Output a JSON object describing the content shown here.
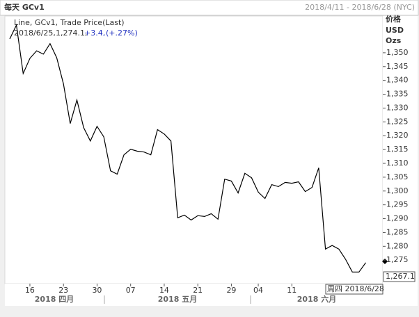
{
  "chart_data": {
    "type": "line",
    "header_left": "每天 GCv1",
    "header_right": "2018/4/11 - 2018/6/28 (NYC)",
    "y_unit_labels": [
      "价格",
      "USD",
      "Ozs"
    ],
    "legend": {
      "title": "Line, GCv1, Trade Price(Last)",
      "date": "2018/6/25,",
      "price": "1,274.1,",
      "change": "+3.4,",
      "change_pct": "(+.27%)"
    },
    "cursor_label": "周四 2018/6/28",
    "price_tag": "1,267.1",
    "month_labels": [
      "2018 四月",
      "2018 五月",
      "2018 六月"
    ],
    "categories": [
      null,
      null,
      null,
      "16",
      null,
      null,
      null,
      null,
      "23",
      null,
      null,
      null,
      null,
      "30",
      null,
      null,
      null,
      null,
      "07",
      null,
      null,
      null,
      null,
      "14",
      null,
      null,
      null,
      null,
      "21",
      null,
      null,
      null,
      null,
      "29",
      null,
      null,
      null,
      "04",
      null,
      null,
      null,
      null,
      "11",
      null,
      null,
      null,
      null,
      null,
      null,
      null,
      null,
      null,
      null,
      null
    ],
    "series": [
      {
        "name": "GCv1",
        "color": "#000000",
        "values": [
          1355.0,
          1360.0,
          1342.5,
          1348.0,
          1350.7,
          1349.5,
          1353.3,
          1348.2,
          1338.7,
          1324.4,
          1332.9,
          1322.9,
          1318.1,
          1323.4,
          1319.6,
          1307.3,
          1306.1,
          1313.1,
          1315.1,
          1314.4,
          1314.1,
          1313.1,
          1322.2,
          1320.6,
          1318.1,
          1290.3,
          1291.3,
          1289.5,
          1291.1,
          1290.8,
          1291.8,
          1289.8,
          1304.3,
          1303.6,
          1299.3,
          1306.4,
          1304.8,
          1299.6,
          1297.3,
          1302.3,
          1301.6,
          1303.1,
          1302.8,
          1303.3,
          1299.8,
          1301.3,
          1308.4,
          1279.0,
          1280.3,
          1279.0,
          1275.3,
          1270.7,
          1270.7,
          1274.1
        ]
      }
    ],
    "ylim": [
      1266.5,
      1363.3
    ],
    "yticks": [
      {
        "value": 1275,
        "label": "1,275"
      },
      {
        "value": 1280,
        "label": "1,280"
      },
      {
        "value": 1285,
        "label": "1,285"
      },
      {
        "value": 1290,
        "label": "1,290"
      },
      {
        "value": 1295,
        "label": "1,295"
      },
      {
        "value": 1300,
        "label": "1,300"
      },
      {
        "value": 1305,
        "label": "1,305"
      },
      {
        "value": 1310,
        "label": "1,310"
      },
      {
        "value": 1315,
        "label": "1,315"
      },
      {
        "value": 1320,
        "label": "1,320"
      },
      {
        "value": 1325,
        "label": "1,325"
      },
      {
        "value": 1330,
        "label": "1,330"
      },
      {
        "value": 1335,
        "label": "1,335"
      },
      {
        "value": 1340,
        "label": "1,340"
      },
      {
        "value": 1345,
        "label": "1,345"
      },
      {
        "value": 1350,
        "label": "1,350"
      }
    ],
    "grid": false
  }
}
